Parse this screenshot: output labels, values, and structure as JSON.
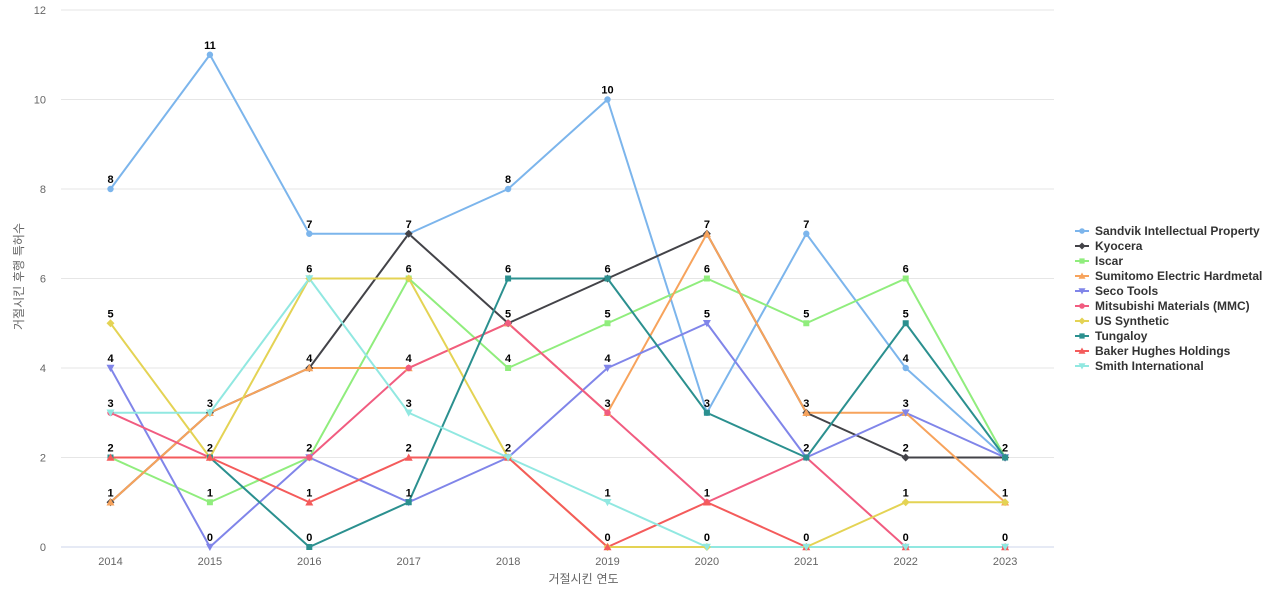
{
  "chart_data": {
    "type": "line",
    "title": "",
    "xlabel": "거절시킨 연도",
    "ylabel": "거절시킨 후행 특허수",
    "x": [
      2014,
      2015,
      2016,
      2017,
      2018,
      2019,
      2020,
      2021,
      2022,
      2023
    ],
    "ylim": [
      0,
      12
    ],
    "yticks": [
      0,
      2,
      4,
      6,
      8,
      10,
      12
    ],
    "grid": true,
    "legend_position": "right",
    "series": [
      {
        "name": "Sandvik Intellectual Property",
        "color": "#7cb5ec",
        "marker": "circle",
        "values": [
          8,
          11,
          7,
          7,
          8,
          10,
          3,
          7,
          4,
          2
        ]
      },
      {
        "name": "Kyocera",
        "color": "#434348",
        "marker": "diamond",
        "values": [
          1,
          3,
          4,
          7,
          5,
          6,
          7,
          3,
          2,
          2
        ]
      },
      {
        "name": "Iscar",
        "color": "#90ed7d",
        "marker": "square",
        "values": [
          2,
          1,
          2,
          6,
          4,
          5,
          6,
          5,
          6,
          2
        ]
      },
      {
        "name": "Sumitomo Electric Hardmetal",
        "color": "#f7a35c",
        "marker": "triangle",
        "values": [
          1,
          3,
          4,
          4,
          5,
          3,
          7,
          3,
          3,
          1
        ]
      },
      {
        "name": "Seco Tools",
        "color": "#8085e9",
        "marker": "triangle-down",
        "values": [
          4,
          0,
          2,
          1,
          2,
          4,
          5,
          2,
          3,
          2
        ]
      },
      {
        "name": "Mitsubishi Materials (MMC)",
        "color": "#f15c80",
        "marker": "circle",
        "values": [
          3,
          2,
          2,
          4,
          5,
          3,
          1,
          2,
          0,
          0
        ]
      },
      {
        "name": "US Synthetic",
        "color": "#e4d354",
        "marker": "diamond",
        "values": [
          5,
          2,
          6,
          6,
          2,
          0,
          0,
          0,
          1,
          1
        ]
      },
      {
        "name": "Tungaloy",
        "color": "#2b908f",
        "marker": "square",
        "values": [
          2,
          2,
          0,
          1,
          6,
          6,
          3,
          2,
          5,
          2
        ]
      },
      {
        "name": "Baker Hughes Holdings",
        "color": "#f45b5b",
        "marker": "triangle",
        "values": [
          2,
          2,
          1,
          2,
          2,
          0,
          1,
          0,
          0,
          0
        ]
      },
      {
        "name": "Smith International",
        "color": "#91e8e1",
        "marker": "triangle-down",
        "values": [
          3,
          3,
          6,
          3,
          2,
          1,
          0,
          0,
          0,
          0
        ]
      }
    ],
    "data_labels": [
      {
        "x": 2014,
        "y": 8,
        "text": "8"
      },
      {
        "x": 2014,
        "y": 5,
        "text": "5"
      },
      {
        "x": 2014,
        "y": 4,
        "text": "4"
      },
      {
        "x": 2014,
        "y": 3,
        "text": "3"
      },
      {
        "x": 2014,
        "y": 2,
        "text": "2"
      },
      {
        "x": 2014,
        "y": 1,
        "text": "1"
      },
      {
        "x": 2015,
        "y": 11,
        "text": "11"
      },
      {
        "x": 2015,
        "y": 3,
        "text": "3"
      },
      {
        "x": 2015,
        "y": 2,
        "text": "2"
      },
      {
        "x": 2015,
        "y": 1,
        "text": "1"
      },
      {
        "x": 2015,
        "y": 0,
        "text": "0"
      },
      {
        "x": 2016,
        "y": 7,
        "text": "7"
      },
      {
        "x": 2016,
        "y": 6,
        "text": "6"
      },
      {
        "x": 2016,
        "y": 4,
        "text": "4"
      },
      {
        "x": 2016,
        "y": 2,
        "text": "2"
      },
      {
        "x": 2016,
        "y": 1,
        "text": "1"
      },
      {
        "x": 2016,
        "y": 0,
        "text": "0"
      },
      {
        "x": 2017,
        "y": 7,
        "text": "7"
      },
      {
        "x": 2017,
        "y": 6,
        "text": "6"
      },
      {
        "x": 2017,
        "y": 4,
        "text": "4"
      },
      {
        "x": 2017,
        "y": 3,
        "text": "3"
      },
      {
        "x": 2017,
        "y": 2,
        "text": "2"
      },
      {
        "x": 2017,
        "y": 1,
        "text": "1"
      },
      {
        "x": 2018,
        "y": 8,
        "text": "8"
      },
      {
        "x": 2018,
        "y": 6,
        "text": "6"
      },
      {
        "x": 2018,
        "y": 5,
        "text": "5"
      },
      {
        "x": 2018,
        "y": 4,
        "text": "4"
      },
      {
        "x": 2018,
        "y": 2,
        "text": "2"
      },
      {
        "x": 2019,
        "y": 10,
        "text": "10"
      },
      {
        "x": 2019,
        "y": 6,
        "text": "6"
      },
      {
        "x": 2019,
        "y": 5,
        "text": "5"
      },
      {
        "x": 2019,
        "y": 4,
        "text": "4"
      },
      {
        "x": 2019,
        "y": 3,
        "text": "3"
      },
      {
        "x": 2019,
        "y": 1,
        "text": "1"
      },
      {
        "x": 2019,
        "y": 0,
        "text": "0"
      },
      {
        "x": 2020,
        "y": 7,
        "text": "7"
      },
      {
        "x": 2020,
        "y": 6,
        "text": "6"
      },
      {
        "x": 2020,
        "y": 5,
        "text": "5"
      },
      {
        "x": 2020,
        "y": 3,
        "text": "3"
      },
      {
        "x": 2020,
        "y": 1,
        "text": "1"
      },
      {
        "x": 2020,
        "y": 0,
        "text": "0"
      },
      {
        "x": 2021,
        "y": 7,
        "text": "7"
      },
      {
        "x": 2021,
        "y": 5,
        "text": "5"
      },
      {
        "x": 2021,
        "y": 3,
        "text": "3"
      },
      {
        "x": 2021,
        "y": 2,
        "text": "2"
      },
      {
        "x": 2021,
        "y": 0,
        "text": "0"
      },
      {
        "x": 2022,
        "y": 6,
        "text": "6"
      },
      {
        "x": 2022,
        "y": 5,
        "text": "5"
      },
      {
        "x": 2022,
        "y": 4,
        "text": "4"
      },
      {
        "x": 2022,
        "y": 3,
        "text": "3"
      },
      {
        "x": 2022,
        "y": 2,
        "text": "2"
      },
      {
        "x": 2022,
        "y": 1,
        "text": "1"
      },
      {
        "x": 2022,
        "y": 0,
        "text": "0"
      },
      {
        "x": 2023,
        "y": 2,
        "text": "2"
      },
      {
        "x": 2023,
        "y": 1,
        "text": "1"
      },
      {
        "x": 2023,
        "y": 0,
        "text": "0"
      }
    ]
  }
}
